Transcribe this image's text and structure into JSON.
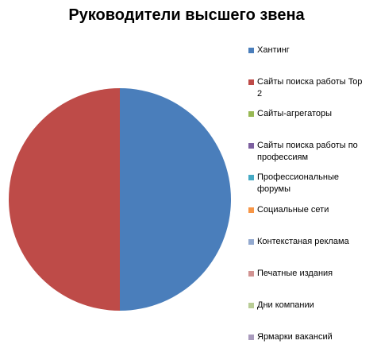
{
  "chart_data": {
    "type": "pie",
    "title": "Руководители высшего звена",
    "categories": [
      "Хантинг",
      "Сайты поиска работы Top 2",
      "Сайты-агрегаторы",
      "Сайты поиска работы по профессиям",
      "Профессиональные форумы",
      "Социальные сети",
      "Контекстаная реклама",
      "Печатные издания",
      "Дни компании",
      "Ярмарки вакансий"
    ],
    "values": [
      50,
      50,
      0,
      0,
      0,
      0,
      0,
      0,
      0,
      0
    ],
    "colors": [
      "#4a7ebb",
      "#be4b48",
      "#98b954",
      "#7d60a0",
      "#46aac5",
      "#f79646",
      "#93a9cf",
      "#d19392",
      "#b9cd96",
      "#a99bbd"
    ],
    "legend": "right"
  }
}
